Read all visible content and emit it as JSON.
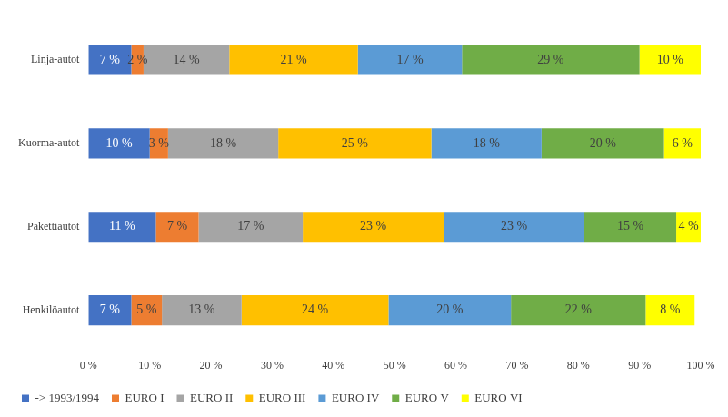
{
  "chart_data": {
    "type": "bar",
    "orientation": "horizontal",
    "stacked": true,
    "data_labels": true,
    "grid": false,
    "legend": "bottom",
    "categories": [
      "Linja-autot",
      "Kuorma-autot",
      "Pakettiautot",
      "Henkilöautot"
    ],
    "xlim": [
      0,
      100
    ],
    "xticks": [
      {
        "value": 0,
        "label": "0 %"
      },
      {
        "value": 10,
        "label": "10 %"
      },
      {
        "value": 20,
        "label": "20 %"
      },
      {
        "value": 30,
        "label": "30 %"
      },
      {
        "value": 40,
        "label": "40 %"
      },
      {
        "value": 50,
        "label": "50 %"
      },
      {
        "value": 60,
        "label": "60 %"
      },
      {
        "value": 70,
        "label": "70 %"
      },
      {
        "value": 80,
        "label": "80 %"
      },
      {
        "value": 90,
        "label": "90 %"
      },
      {
        "value": 100,
        "label": "100 %"
      }
    ],
    "series": [
      {
        "name": "-> 1993/1994",
        "color": "#4472c4",
        "values": [
          7,
          10,
          11,
          7
        ],
        "value_labels": [
          "7 %",
          "10 %",
          "11 %",
          "7 %"
        ]
      },
      {
        "name": "EURO I",
        "color": "#ed7d31",
        "values": [
          2,
          3,
          7,
          5
        ],
        "value_labels": [
          "2 %",
          "3 %",
          "7 %",
          "5 %"
        ]
      },
      {
        "name": "EURO II",
        "color": "#a5a5a5",
        "values": [
          14,
          18,
          17,
          13
        ],
        "value_labels": [
          "14 %",
          "18 %",
          "17 %",
          "13 %"
        ]
      },
      {
        "name": "EURO III",
        "color": "#ffc000",
        "values": [
          21,
          25,
          23,
          24
        ],
        "value_labels": [
          "21 %",
          "25 %",
          "23 %",
          "24 %"
        ]
      },
      {
        "name": "EURO IV",
        "color": "#5b9bd5",
        "values": [
          17,
          18,
          23,
          20
        ],
        "value_labels": [
          "17 %",
          "18 %",
          "23 %",
          "20 %"
        ]
      },
      {
        "name": "EURO V",
        "color": "#70ad47",
        "values": [
          29,
          20,
          15,
          22
        ],
        "value_labels": [
          "29 %",
          "20 %",
          "15 %",
          "22 %"
        ]
      },
      {
        "name": "EURO VI",
        "color": "#ffff00",
        "values": [
          10,
          6,
          4,
          8
        ],
        "value_labels": [
          "10 %",
          "6 %",
          "4 %",
          "8 %"
        ]
      }
    ]
  }
}
